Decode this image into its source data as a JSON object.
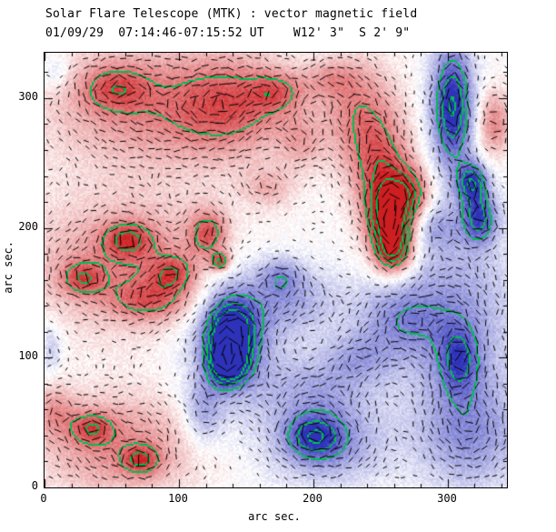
{
  "title": {
    "line1": "Solar Flare Telescope (MTK) : vector magnetic field",
    "line2": "01/09/29  07:14:46-07:15:52 UT    W12' 3\"  S 2' 9\""
  },
  "axes": {
    "xlabel": "arc sec.",
    "ylabel": "arc sec.",
    "x_tick_labels": [
      "0",
      "100",
      "200",
      "300"
    ],
    "y_tick_labels": [
      "0",
      "100",
      "200",
      "300"
    ]
  },
  "chart_data": {
    "type": "heatmap",
    "title": "Solar Flare Telescope (MTK) : vector magnetic field",
    "subtitle": "01/09/29  07:14:46-07:15:52 UT    W12' 3\"  S 2' 9\"",
    "xlabel": "arc sec.",
    "ylabel": "arc sec.",
    "xlim": [
      0,
      344
    ],
    "ylim": [
      0,
      335
    ],
    "xticks": [
      0,
      100,
      200,
      300
    ],
    "yticks": [
      0,
      100,
      200,
      300
    ],
    "minor_tick_step": 20,
    "grid": false,
    "legend": "none",
    "colors": {
      "positive_core": "#cd1e21",
      "negative_core": "#2d32b9",
      "contour": "#00be50",
      "vector": "#000000",
      "background": "#ffffff"
    },
    "contour_levels": [
      0.6,
      0.85,
      1.08
    ],
    "noise": 0.08,
    "seed": 20010929,
    "vector_step": 10,
    "blobs": [
      {
        "x": 82,
        "y": 294,
        "sx": 58,
        "sy": 35,
        "a": 0.5
      },
      {
        "x": 52,
        "y": 308,
        "sx": 18,
        "sy": 13,
        "a": 0.45
      },
      {
        "x": 140,
        "y": 294,
        "sx": 30,
        "sy": 25,
        "a": 0.5
      },
      {
        "x": 174,
        "y": 305,
        "sx": 15,
        "sy": 11,
        "a": 0.42
      },
      {
        "x": 214,
        "y": 315,
        "sx": 14,
        "sy": 10,
        "a": 0.3
      },
      {
        "x": 235,
        "y": 291,
        "sx": 20,
        "sy": 28,
        "a": 0.5
      },
      {
        "x": 251,
        "y": 249,
        "sx": 17,
        "sy": 25,
        "a": 0.6
      },
      {
        "x": 258,
        "y": 210,
        "sx": 13,
        "sy": 20,
        "a": 1.25
      },
      {
        "x": 260,
        "y": 182,
        "sx": 10,
        "sy": 13,
        "a": 0.9
      },
      {
        "x": 275,
        "y": 228,
        "sx": 10,
        "sy": 14,
        "a": 0.5
      },
      {
        "x": 335,
        "y": 280,
        "sx": 9,
        "sy": 18,
        "a": 0.55
      },
      {
        "x": 131,
        "y": 174,
        "sx": 5,
        "sy": 5,
        "a": 0.75
      },
      {
        "x": 62,
        "y": 172,
        "sx": 54,
        "sy": 35,
        "a": 0.5
      },
      {
        "x": 28,
        "y": 161,
        "sx": 11,
        "sy": 9,
        "a": 0.5
      },
      {
        "x": 62,
        "y": 191,
        "sx": 13,
        "sy": 10,
        "a": 0.55
      },
      {
        "x": 96,
        "y": 165,
        "sx": 12,
        "sy": 10,
        "a": 0.5
      },
      {
        "x": 122,
        "y": 196,
        "sx": 10,
        "sy": 13,
        "a": 0.62
      },
      {
        "x": 79,
        "y": 144,
        "sx": 21,
        "sy": 11,
        "a": 0.45
      },
      {
        "x": 55,
        "y": 32,
        "sx": 42,
        "sy": 28,
        "a": 0.5
      },
      {
        "x": 35,
        "y": 46,
        "sx": 11,
        "sy": 9,
        "a": 0.5
      },
      {
        "x": 72,
        "y": 21,
        "sx": 10,
        "sy": 8,
        "a": 0.55
      },
      {
        "x": 167,
        "y": 231,
        "sx": 14,
        "sy": 11,
        "a": 0.3
      },
      {
        "x": 8,
        "y": 59,
        "sx": 10,
        "sy": 14,
        "a": 0.35
      },
      {
        "x": 191,
        "y": 266,
        "sx": 12,
        "sy": 15,
        "a": 0.3
      },
      {
        "x": 304,
        "y": 294,
        "sx": 11,
        "sy": 32,
        "a": -1.1
      },
      {
        "x": 319,
        "y": 235,
        "sx": 8,
        "sy": 11,
        "a": -0.9
      },
      {
        "x": 324,
        "y": 207,
        "sx": 9,
        "sy": 13,
        "a": -0.8
      },
      {
        "x": 309,
        "y": 123,
        "sx": 30,
        "sy": 64,
        "a": -0.45
      },
      {
        "x": 309,
        "y": 98,
        "sx": 10,
        "sy": 18,
        "a": -0.55
      },
      {
        "x": 138,
        "y": 117,
        "sx": 12,
        "sy": 18,
        "a": -1.2
      },
      {
        "x": 136,
        "y": 95,
        "sx": 9,
        "sy": 11,
        "a": -1.0
      },
      {
        "x": 140,
        "y": 116,
        "sx": 24,
        "sy": 39,
        "a": -0.55
      },
      {
        "x": 184,
        "y": 144,
        "sx": 27,
        "sy": 18,
        "a": -0.4
      },
      {
        "x": 204,
        "y": 74,
        "sx": 30,
        "sy": 21,
        "a": -0.38
      },
      {
        "x": 265,
        "y": 130,
        "sx": 24,
        "sy": 21,
        "a": -0.45
      },
      {
        "x": 235,
        "y": 100,
        "sx": 18,
        "sy": 14,
        "a": -0.32
      },
      {
        "x": 201,
        "y": 39,
        "sx": 14,
        "sy": 11,
        "a": -0.6
      },
      {
        "x": 211,
        "y": 32,
        "sx": 30,
        "sy": 21,
        "a": -0.5
      },
      {
        "x": 319,
        "y": 39,
        "sx": 27,
        "sy": 28,
        "a": -0.38
      },
      {
        "x": 177,
        "y": 164,
        "sx": 12,
        "sy": 10,
        "a": -0.35
      },
      {
        "x": 292,
        "y": 200,
        "sx": 12,
        "sy": 12,
        "a": -0.3
      },
      {
        "x": 5,
        "y": 108,
        "sx": 6,
        "sy": 14,
        "a": -0.28
      },
      {
        "x": 8,
        "y": 320,
        "sx": 8,
        "sy": 10,
        "a": -0.25
      },
      {
        "x": 118,
        "y": 58,
        "sx": 10,
        "sy": 18,
        "a": -0.4
      }
    ]
  }
}
